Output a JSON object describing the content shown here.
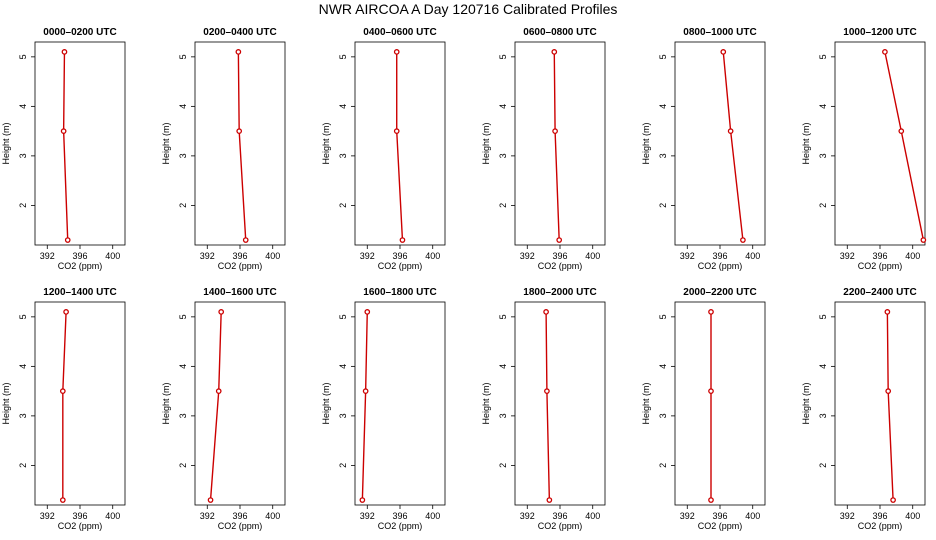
{
  "figure": {
    "title": "NWR AIRCOA A  Day 120716  Calibrated Profiles",
    "line_color": "#cc0000"
  },
  "chart_data": [
    {
      "type": "line",
      "title": "0000–0200 UTC",
      "xlabel": "CO2 (ppm)",
      "ylabel": "Height (m)",
      "xlim": [
        390.5,
        401.5
      ],
      "ylim": [
        1.2,
        5.3
      ],
      "xticks": [
        "392",
        "396",
        "400"
      ],
      "yticks": [
        "2",
        "3",
        "4",
        "5"
      ],
      "series": [
        {
          "name": "profile",
          "co2": [
            394.1,
            394.0,
            394.5
          ],
          "height": [
            5.1,
            3.5,
            1.3
          ]
        }
      ]
    },
    {
      "type": "line",
      "title": "0200–0400 UTC",
      "xlabel": "CO2 (ppm)",
      "ylabel": "Height (m)",
      "xlim": [
        390.5,
        401.5
      ],
      "ylim": [
        1.2,
        5.3
      ],
      "xticks": [
        "392",
        "396",
        "400"
      ],
      "yticks": [
        "2",
        "3",
        "4",
        "5"
      ],
      "series": [
        {
          "name": "profile",
          "co2": [
            395.8,
            395.9,
            396.7
          ],
          "height": [
            5.1,
            3.5,
            1.3
          ]
        }
      ]
    },
    {
      "type": "line",
      "title": "0400–0600 UTC",
      "xlabel": "CO2 (ppm)",
      "ylabel": "Height (m)",
      "xlim": [
        390.5,
        401.5
      ],
      "ylim": [
        1.2,
        5.3
      ],
      "xticks": [
        "392",
        "396",
        "400"
      ],
      "yticks": [
        "2",
        "3",
        "4",
        "5"
      ],
      "series": [
        {
          "name": "profile",
          "co2": [
            395.6,
            395.6,
            396.3
          ],
          "height": [
            5.1,
            3.5,
            1.3
          ]
        }
      ]
    },
    {
      "type": "line",
      "title": "0600–0800 UTC",
      "xlabel": "CO2 (ppm)",
      "ylabel": "Height (m)",
      "xlim": [
        390.5,
        401.5
      ],
      "ylim": [
        1.2,
        5.3
      ],
      "xticks": [
        "392",
        "396",
        "400"
      ],
      "yticks": [
        "2",
        "3",
        "4",
        "5"
      ],
      "series": [
        {
          "name": "profile",
          "co2": [
            395.3,
            395.4,
            395.9
          ],
          "height": [
            5.1,
            3.5,
            1.3
          ]
        }
      ]
    },
    {
      "type": "line",
      "title": "0800–1000 UTC",
      "xlabel": "CO2 (ppm)",
      "ylabel": "Height (m)",
      "xlim": [
        390.5,
        401.5
      ],
      "ylim": [
        1.2,
        5.3
      ],
      "xticks": [
        "392",
        "396",
        "400"
      ],
      "yticks": [
        "2",
        "3",
        "4",
        "5"
      ],
      "series": [
        {
          "name": "profile",
          "co2": [
            396.4,
            397.3,
            398.8
          ],
          "height": [
            5.1,
            3.5,
            1.3
          ]
        }
      ]
    },
    {
      "type": "line",
      "title": "1000–1200 UTC",
      "xlabel": "CO2 (ppm)",
      "ylabel": "Height (m)",
      "xlim": [
        390.5,
        401.5
      ],
      "ylim": [
        1.2,
        5.3
      ],
      "xticks": [
        "392",
        "396",
        "400"
      ],
      "yticks": [
        "2",
        "3",
        "4",
        "5"
      ],
      "series": [
        {
          "name": "profile",
          "co2": [
            396.6,
            398.6,
            401.3
          ],
          "height": [
            5.1,
            3.5,
            1.3
          ]
        }
      ]
    },
    {
      "type": "line",
      "title": "1200–1400 UTC",
      "xlabel": "CO2 (ppm)",
      "ylabel": "Height (m)",
      "xlim": [
        390.5,
        401.5
      ],
      "ylim": [
        1.2,
        5.3
      ],
      "xticks": [
        "392",
        "396",
        "400"
      ],
      "yticks": [
        "2",
        "3",
        "4",
        "5"
      ],
      "series": [
        {
          "name": "profile",
          "co2": [
            394.3,
            393.9,
            393.9
          ],
          "height": [
            5.1,
            3.5,
            1.3
          ]
        }
      ]
    },
    {
      "type": "line",
      "title": "1400–1600 UTC",
      "xlabel": "CO2 (ppm)",
      "ylabel": "Height (m)",
      "xlim": [
        390.5,
        401.5
      ],
      "ylim": [
        1.2,
        5.3
      ],
      "xticks": [
        "392",
        "396",
        "400"
      ],
      "yticks": [
        "2",
        "3",
        "4",
        "5"
      ],
      "series": [
        {
          "name": "profile",
          "co2": [
            393.7,
            393.4,
            392.4
          ],
          "height": [
            5.1,
            3.5,
            1.3
          ]
        }
      ]
    },
    {
      "type": "line",
      "title": "1600–1800 UTC",
      "xlabel": "CO2 (ppm)",
      "ylabel": "Height (m)",
      "xlim": [
        390.5,
        401.5
      ],
      "ylim": [
        1.2,
        5.3
      ],
      "xticks": [
        "392",
        "396",
        "400"
      ],
      "yticks": [
        "2",
        "3",
        "4",
        "5"
      ],
      "series": [
        {
          "name": "profile",
          "co2": [
            392.0,
            391.8,
            391.4
          ],
          "height": [
            5.1,
            3.5,
            1.3
          ]
        }
      ]
    },
    {
      "type": "line",
      "title": "1800–2000 UTC",
      "xlabel": "CO2 (ppm)",
      "ylabel": "Height (m)",
      "xlim": [
        390.5,
        401.5
      ],
      "ylim": [
        1.2,
        5.3
      ],
      "xticks": [
        "392",
        "396",
        "400"
      ],
      "yticks": [
        "2",
        "3",
        "4",
        "5"
      ],
      "series": [
        {
          "name": "profile",
          "co2": [
            394.3,
            394.4,
            394.7
          ],
          "height": [
            5.1,
            3.5,
            1.3
          ]
        }
      ]
    },
    {
      "type": "line",
      "title": "2000–2200 UTC",
      "xlabel": "CO2 (ppm)",
      "ylabel": "Height (m)",
      "xlim": [
        390.5,
        401.5
      ],
      "ylim": [
        1.2,
        5.3
      ],
      "xticks": [
        "392",
        "396",
        "400"
      ],
      "yticks": [
        "2",
        "3",
        "4",
        "5"
      ],
      "series": [
        {
          "name": "profile",
          "co2": [
            394.9,
            394.9,
            394.9
          ],
          "height": [
            5.1,
            3.5,
            1.3
          ]
        }
      ]
    },
    {
      "type": "line",
      "title": "2200–2400 UTC",
      "xlabel": "CO2 (ppm)",
      "ylabel": "Height (m)",
      "xlim": [
        390.5,
        401.5
      ],
      "ylim": [
        1.2,
        5.3
      ],
      "xticks": [
        "392",
        "396",
        "400"
      ],
      "yticks": [
        "2",
        "3",
        "4",
        "5"
      ],
      "series": [
        {
          "name": "profile",
          "co2": [
            396.9,
            397.0,
            397.6
          ],
          "height": [
            5.1,
            3.5,
            1.3
          ]
        }
      ]
    }
  ]
}
